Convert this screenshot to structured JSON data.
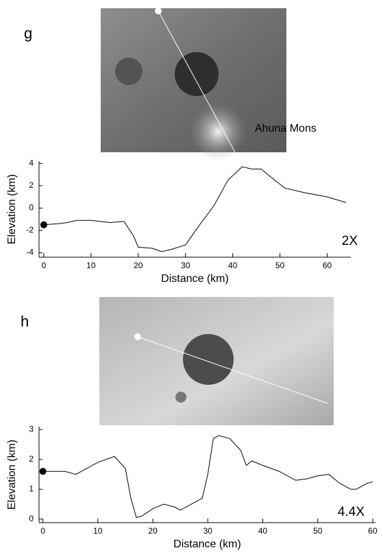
{
  "chart_data": [
    {
      "type": "line",
      "panel_label": "g",
      "image_label": "Ahuna Mons",
      "annotation": "2X",
      "x_label": "Distance (km)",
      "y_label": "Elevation (km)",
      "color": "#000000",
      "x": [
        0,
        3,
        5,
        7,
        10,
        14,
        17,
        19,
        20,
        23,
        25,
        27,
        30,
        33,
        36,
        39,
        42,
        44,
        46,
        48,
        51,
        55,
        60,
        64
      ],
      "values": [
        -1.5,
        -1.4,
        -1.3,
        -1.1,
        -1.1,
        -1.3,
        -1.2,
        -2.5,
        -3.5,
        -3.6,
        -3.9,
        -3.7,
        -3.3,
        -1.5,
        0.2,
        2.5,
        3.7,
        3.5,
        3.5,
        2.8,
        1.8,
        1.4,
        1.0,
        0.5
      ],
      "xlim": [
        -1,
        65
      ],
      "xticks": [
        0,
        10,
        20,
        30,
        40,
        50,
        60
      ],
      "ylim": [
        -4.4,
        4.2
      ],
      "yticks": [
        -4,
        -2,
        0,
        2,
        4
      ]
    },
    {
      "type": "line",
      "panel_label": "h",
      "annotation": "4.4X",
      "x_label": "Distance (km)",
      "y_label": "Elevation (km)",
      "color": "#000000",
      "x": [
        0,
        4,
        6,
        8,
        10,
        13,
        15,
        16,
        17,
        18,
        20,
        22,
        24,
        25,
        27,
        29,
        30,
        31,
        32,
        34,
        36,
        37,
        38,
        40,
        43,
        46,
        48,
        50,
        52,
        54,
        56,
        57,
        59,
        60
      ],
      "values": [
        1.6,
        1.6,
        1.5,
        1.7,
        1.9,
        2.1,
        1.7,
        0.7,
        0.05,
        0.1,
        0.35,
        0.5,
        0.4,
        0.3,
        0.5,
        0.7,
        1.5,
        2.7,
        2.8,
        2.7,
        2.3,
        1.8,
        1.95,
        1.8,
        1.6,
        1.3,
        1.35,
        1.45,
        1.5,
        1.2,
        1.0,
        1.0,
        1.2,
        1.25
      ],
      "xlim": [
        -0.7,
        60.5
      ],
      "xticks": [
        0,
        10,
        20,
        30,
        40,
        50,
        60
      ],
      "ylim": [
        -0.12,
        3.1
      ],
      "yticks": [
        0,
        1,
        2,
        3
      ]
    }
  ]
}
